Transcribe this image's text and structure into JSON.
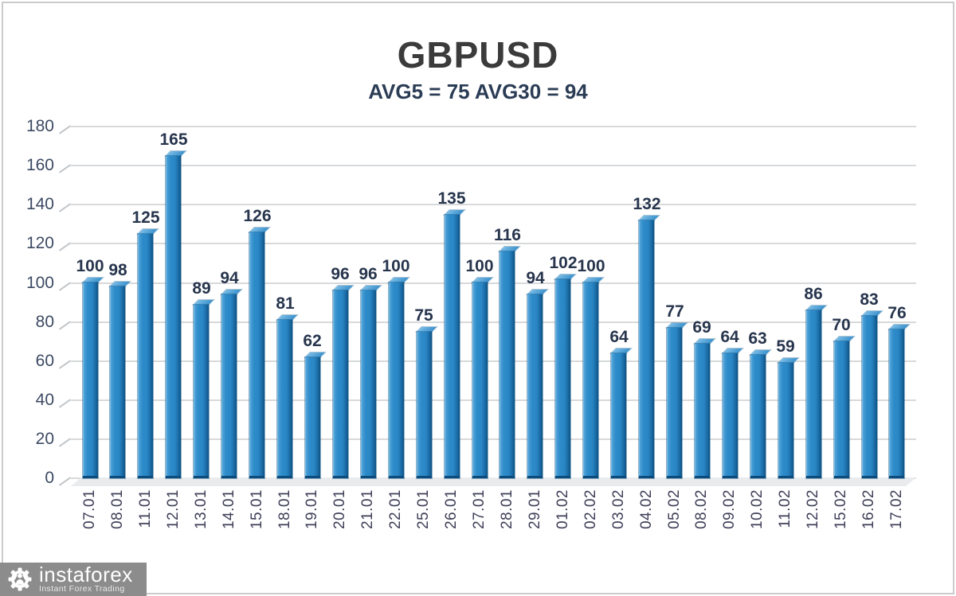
{
  "header": {
    "title": "GBPUSD",
    "subtitle": "AVG5 = 75 AVG30 = 94"
  },
  "chart_data": {
    "type": "bar",
    "title": "GBPUSD",
    "subtitle": "AVG5 = 75 AVG30 = 94",
    "categories": [
      "07.01",
      "08.01",
      "11.01",
      "12.01",
      "13.01",
      "14.01",
      "15.01",
      "18.01",
      "19.01",
      "20.01",
      "21.01",
      "22.01",
      "25.01",
      "26.01",
      "27.01",
      "28.01",
      "29.01",
      "01.02",
      "02.02",
      "03.02",
      "04.02",
      "05.02",
      "08.02",
      "09.02",
      "10.02",
      "11.02",
      "12.02",
      "15.02",
      "16.02",
      "17.02"
    ],
    "values": [
      100,
      98,
      125,
      165,
      89,
      94,
      126,
      81,
      62,
      96,
      96,
      100,
      75,
      135,
      100,
      116,
      94,
      102,
      100,
      64,
      132,
      77,
      69,
      64,
      63,
      59,
      86,
      70,
      83,
      76
    ],
    "xlabel": "",
    "ylabel": "",
    "ylim": [
      0,
      180
    ],
    "ytick_step": 20,
    "yticks": [
      0,
      20,
      40,
      60,
      80,
      100,
      120,
      140,
      160,
      180
    ],
    "grid": true,
    "value_labels_shown": true,
    "legend": "none",
    "style_3d": true
  },
  "colors": {
    "title_text": "#3b3b3b",
    "subtitle_text": "#2b3c55",
    "grid": "#d7d9db",
    "axis_text": "#3c4a63",
    "value_text": "#27354d",
    "date_text": "#3e3e58",
    "bar_main": "#2e8cca",
    "bar_light": "#8ec9ec",
    "bar_dark": "#0f5385",
    "frame": "#cbcbcb",
    "logo_bg": "#8c8c8c"
  },
  "branding": {
    "name": "instaforex",
    "tagline": "Instant Forex Trading",
    "icon": "gear-person-icon"
  }
}
